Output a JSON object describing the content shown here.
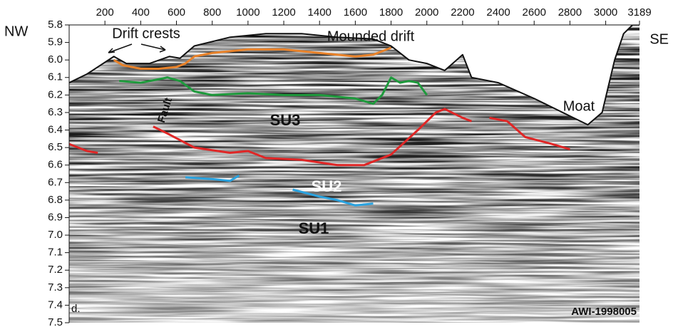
{
  "chart_data": {
    "type": "seismic",
    "xlim": [
      0,
      3189
    ],
    "xticks": [
      200,
      400,
      600,
      800,
      1000,
      1200,
      1400,
      1600,
      1800,
      2000,
      2200,
      2400,
      2600,
      2800,
      3000,
      3189
    ],
    "ylim": [
      5.8,
      7.5
    ],
    "yticks": [
      5.8,
      5.9,
      {
        "value": 6.0,
        "label": "6.0"
      },
      6.1,
      6.2,
      6.3,
      6.4,
      6.5,
      6.6,
      6.7,
      6.8,
      6.9,
      {
        "value": 7.0,
        "label": "7.0"
      },
      7.1,
      7.2,
      7.3,
      7.4,
      7.5
    ],
    "annotations": [
      "NW",
      "SE",
      "Drift crests",
      "Mounded drift",
      "Fault",
      "SU3",
      "SU2",
      "SU1",
      "Moat",
      "d.",
      "AWI-1998005"
    ],
    "series": [
      {
        "color": "#111111",
        "x": [
          0,
          100,
          250,
          320,
          450,
          560,
          620,
          700,
          900,
          1100,
          1300,
          1500,
          1700,
          1800,
          1900,
          2000,
          2100,
          2200,
          2250,
          2400,
          2600,
          2800,
          2900,
          2980,
          3050,
          3100,
          3150,
          3189
        ],
        "values": [
          6.13,
          6.08,
          5.98,
          6.02,
          6.02,
          5.98,
          5.99,
          5.92,
          5.87,
          5.85,
          5.85,
          5.87,
          5.88,
          5.92,
          6.0,
          6.02,
          6.06,
          5.97,
          6.1,
          6.13,
          6.22,
          6.32,
          6.37,
          6.3,
          6.0,
          5.85,
          5.8,
          5.8
        ]
      },
      {
        "color": "#e8822a",
        "x": [
          250,
          300,
          400,
          500,
          600,
          650,
          700,
          800,
          1000,
          1200,
          1400,
          1600,
          1700,
          1800
        ],
        "values": [
          6.0,
          6.03,
          6.05,
          6.05,
          6.04,
          6.02,
          5.98,
          5.96,
          5.94,
          5.94,
          5.96,
          5.98,
          5.97,
          5.93
        ]
      },
      {
        "color": "#1e9a3c",
        "x": [
          280,
          400,
          500,
          550,
          620,
          700,
          800,
          1000,
          1200,
          1400,
          1600,
          1700,
          1750,
          1800,
          1850,
          1900,
          1950,
          2000
        ],
        "values": [
          6.12,
          6.13,
          6.11,
          6.1,
          6.12,
          6.18,
          6.2,
          6.19,
          6.2,
          6.2,
          6.22,
          6.25,
          6.2,
          6.1,
          6.13,
          6.12,
          6.13,
          6.2
        ]
      },
      {
        "color": "#e02626",
        "x": [
          0,
          100,
          160,
          null,
          470,
          550,
          700,
          900,
          1000,
          1100,
          1300,
          1500,
          1650,
          1800,
          1950,
          2050,
          2100,
          2200,
          2250,
          null,
          2350,
          2450,
          2550,
          2700,
          2800
        ],
        "values": [
          6.48,
          6.52,
          6.53,
          null,
          6.38,
          6.42,
          6.5,
          6.53,
          6.52,
          6.56,
          6.57,
          6.6,
          6.6,
          6.54,
          6.4,
          6.3,
          6.28,
          6.33,
          6.35,
          null,
          6.33,
          6.35,
          6.44,
          6.48,
          6.51
        ]
      },
      {
        "color": "#2aa3e0",
        "x": [
          650,
          800,
          900,
          950,
          null,
          1250,
          1400,
          1500,
          1600,
          1700
        ],
        "values": [
          6.67,
          6.68,
          6.69,
          6.66,
          null,
          6.74,
          6.78,
          6.8,
          6.83,
          6.82
        ]
      }
    ]
  }
}
